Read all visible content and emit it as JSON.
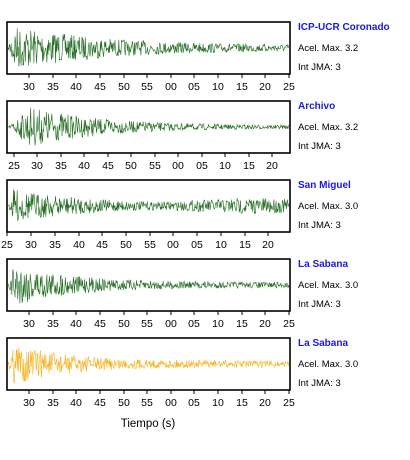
{
  "chart_data": {
    "type": "line",
    "xlabel": "Tiempo (s)",
    "panels": [
      {
        "name": "ICP-UCR Coronado",
        "acel_label": "Acel. Max. 3.2",
        "int_label": "Int JMA: 3",
        "color": "#1e6b1e",
        "tick_labels": [
          "30",
          "35",
          "40",
          "45",
          "50",
          "55",
          "00",
          "05",
          "10",
          "15",
          "20",
          "25"
        ]
      },
      {
        "name": "Archivo",
        "acel_label": "Acel. Max. 3.2",
        "int_label": "Int JMA: 3",
        "color": "#1e6b1e",
        "tick_labels": [
          "25",
          "30",
          "35",
          "40",
          "45",
          "50",
          "55",
          "00",
          "05",
          "10",
          "15",
          "20"
        ]
      },
      {
        "name": "San Miguel",
        "acel_label": "Acel. Max. 3.0",
        "int_label": "Int JMA: 3",
        "color": "#1e6b1e",
        "tick_labels": [
          "25",
          "30",
          "35",
          "40",
          "45",
          "50",
          "55",
          "00",
          "05",
          "10",
          "15",
          "20"
        ]
      },
      {
        "name": "La Sabana",
        "acel_label": "Acel. Max. 3.0",
        "int_label": "Int JMA: 3",
        "color": "#1e6b1e",
        "tick_labels": [
          "30",
          "35",
          "40",
          "45",
          "50",
          "55",
          "00",
          "05",
          "10",
          "15",
          "20",
          "25"
        ]
      },
      {
        "name": "La Sabana",
        "acel_label": "Acel. Max. 3.0",
        "int_label": "Int JMA: 3",
        "color": "#f4b21b",
        "tick_labels": [
          "30",
          "35",
          "40",
          "45",
          "50",
          "55",
          "00",
          "05",
          "10",
          "15",
          "20",
          "25"
        ]
      }
    ]
  }
}
